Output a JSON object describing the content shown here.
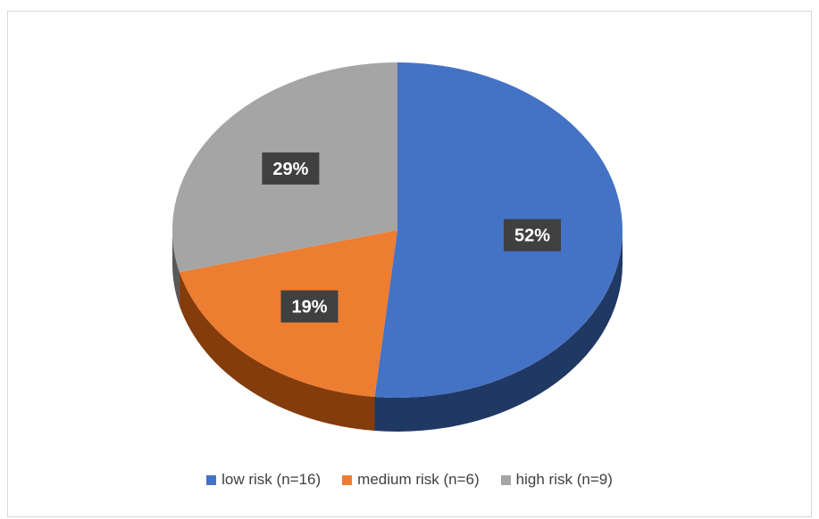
{
  "chart_data": {
    "type": "pie",
    "style": "3d",
    "title": "",
    "slices": [
      {
        "label": "low risk (n=16)",
        "value": 16,
        "percent_label": "52%",
        "color": "#4472c4",
        "side_color": "#203864"
      },
      {
        "label": "medium risk (n=6)",
        "value": 6,
        "percent_label": "19%",
        "color": "#ed7d31",
        "side_color": "#843c0c"
      },
      {
        "label": "high risk (n=9)",
        "value": 9,
        "percent_label": "29%",
        "color": "#a5a5a5",
        "side_color": "#595959"
      }
    ],
    "legend_position": "bottom"
  }
}
